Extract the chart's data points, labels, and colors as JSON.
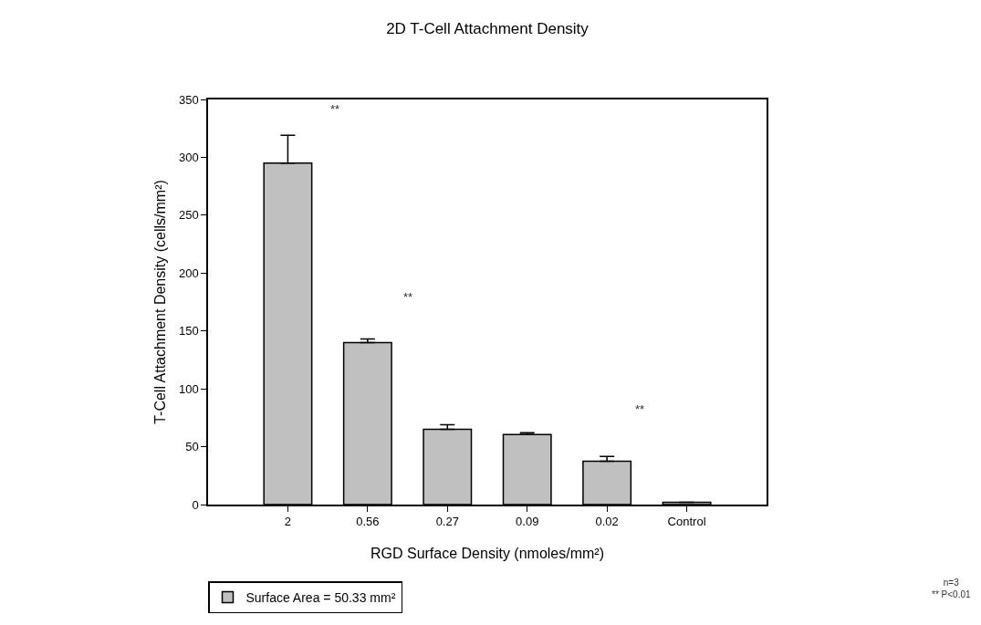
{
  "chart_data": {
    "type": "bar",
    "title": "2D T-Cell Attachment Density",
    "xlabel": "RGD Surface Density (nmoles/mm²)",
    "ylabel": "T-Cell Attachment Density (cells/mm²)",
    "categories": [
      "2",
      "0.56",
      "0.27",
      "0.09",
      "0.02",
      "Control"
    ],
    "series": [
      {
        "name": "Surface Area = 50.33 mm²",
        "color": "#c0c0c0",
        "values": [
          295,
          140,
          65,
          60.5,
          37.5,
          2
        ],
        "errors": [
          24,
          3,
          4,
          1.5,
          4,
          null
        ]
      }
    ],
    "ylim": [
      0,
      350
    ],
    "yticks": [
      0,
      50,
      100,
      150,
      200,
      250,
      300,
      350
    ],
    "legend": "bottom left",
    "annotations": [
      "**",
      "**",
      "**",
      "n=3\n** P<0.01"
    ]
  }
}
